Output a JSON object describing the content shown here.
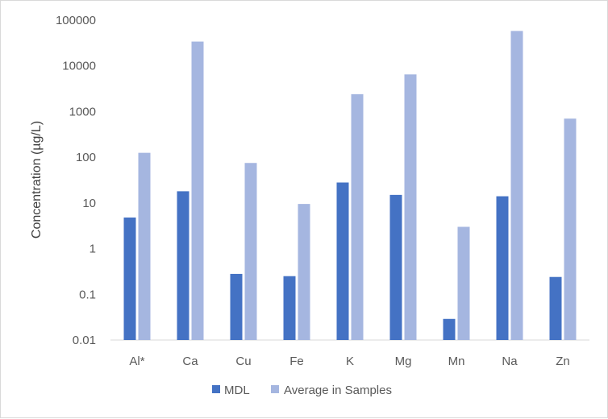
{
  "chart_data": {
    "type": "bar",
    "title": "",
    "xlabel": "",
    "ylabel": "Concentration (µg/L)",
    "yscale": "log",
    "ylim": [
      0.01,
      100000
    ],
    "yticks": [
      "0.01",
      "0.1",
      "1",
      "10",
      "100",
      "1000",
      "10000",
      "100000"
    ],
    "categories": [
      "Al*",
      "Ca",
      "Cu",
      "Fe",
      "K",
      "Mg",
      "Mn",
      "Na",
      "Zn"
    ],
    "series": [
      {
        "name": "MDL",
        "color": "#4472c4",
        "values": [
          4.8,
          18,
          0.28,
          0.25,
          28,
          15,
          0.029,
          14,
          0.24
        ]
      },
      {
        "name": "Average in Samples",
        "color": "#a5b6e0",
        "values": [
          125,
          34000,
          75,
          9.5,
          2400,
          6500,
          3,
          58000,
          700
        ]
      }
    ],
    "grid": false,
    "legend_position": "bottom"
  }
}
